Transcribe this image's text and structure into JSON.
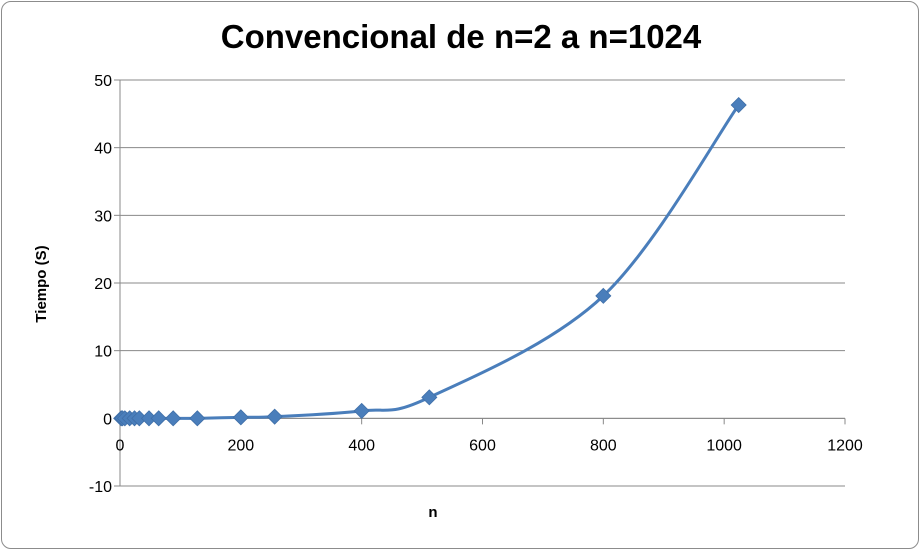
{
  "chart_data": {
    "type": "scatter",
    "title": "Convencional de n=2 a n=1024",
    "xlabel": "n",
    "ylabel": "Tiempo (S)",
    "xlim": [
      0,
      1200
    ],
    "ylim": [
      -10,
      50
    ],
    "xticks": [
      "0",
      "200",
      "400",
      "600",
      "800",
      "1000",
      "1200"
    ],
    "yticks": [
      "-10",
      "0",
      "10",
      "20",
      "30",
      "40",
      "50"
    ],
    "grid": true,
    "legend": "none",
    "series_color": "#4a7ebb",
    "marker": "diamond",
    "line": "smooth",
    "x": [
      2,
      4,
      8,
      16,
      24,
      32,
      48,
      64,
      88,
      128,
      200,
      256,
      400,
      512,
      800,
      1024
    ],
    "y": [
      0,
      0,
      0,
      0,
      0,
      0,
      0,
      0,
      0,
      0,
      0.15,
      0.25,
      1.1,
      3.1,
      18.1,
      46.3
    ]
  }
}
